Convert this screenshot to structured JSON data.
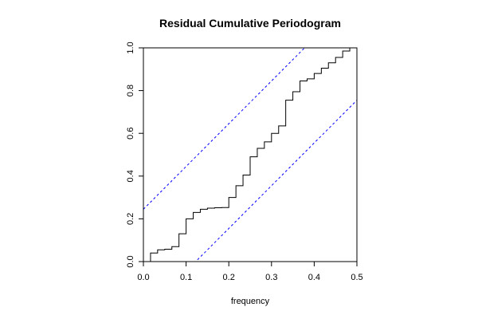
{
  "chart_data": {
    "type": "line",
    "title": "Residual Cumulative Periodogram",
    "xlabel": "frequency",
    "ylabel": "",
    "xlim": [
      0,
      0.5
    ],
    "ylim": [
      0,
      1
    ],
    "x_ticks": [
      "0.0",
      "0.1",
      "0.2",
      "0.3",
      "0.4",
      "0.5"
    ],
    "y_ticks": [
      "0.0",
      "0.2",
      "0.4",
      "0.6",
      "0.8",
      "1.0"
    ],
    "grid": false,
    "legend": "none",
    "series": [
      {
        "style": "step",
        "color": "#000000",
        "x": [
          0.0,
          0.0167,
          0.0333,
          0.05,
          0.0667,
          0.0833,
          0.1,
          0.1167,
          0.1333,
          0.15,
          0.1667,
          0.1833,
          0.2,
          0.2167,
          0.2333,
          0.25,
          0.2667,
          0.2833,
          0.3,
          0.3167,
          0.3333,
          0.35,
          0.3667,
          0.3833,
          0.4,
          0.4167,
          0.4333,
          0.45,
          0.4667,
          0.4833,
          0.5
        ],
        "y": [
          0.0,
          0.04,
          0.055,
          0.058,
          0.07,
          0.13,
          0.2,
          0.23,
          0.245,
          0.25,
          0.252,
          0.253,
          0.3,
          0.355,
          0.405,
          0.49,
          0.53,
          0.56,
          0.6,
          0.635,
          0.755,
          0.795,
          0.845,
          0.855,
          0.88,
          0.905,
          0.93,
          0.955,
          0.985,
          1.0,
          1.0
        ]
      },
      {
        "style": "dashed",
        "color": "#0000ff",
        "x": [
          0.0,
          0.5
        ],
        "y": [
          0.245,
          1.245
        ]
      },
      {
        "style": "dashed",
        "color": "#0000ff",
        "x": [
          0.0,
          0.5
        ],
        "y": [
          -0.245,
          0.755
        ]
      }
    ]
  }
}
